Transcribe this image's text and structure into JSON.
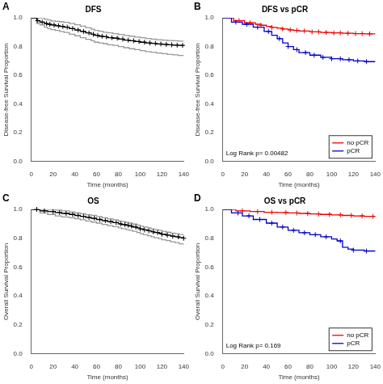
{
  "chart_data": [
    {
      "type": "line",
      "title": "DFS",
      "panel_label": "A",
      "xlabel": "Time (months)",
      "ylabel": "Disease-free Survival Proportion",
      "xlim": [
        0,
        140
      ],
      "ylim": [
        0.0,
        1.0
      ],
      "xticks": [
        0,
        20,
        40,
        60,
        80,
        100,
        120,
        140
      ],
      "yticks": [
        {
          "value": 0.0,
          "label": "0.0"
        },
        0.2,
        0.4,
        0.6,
        0.8,
        {
          "value": 1.0,
          "label": "1.0"
        }
      ],
      "grid": false,
      "series": [
        {
          "type": "step",
          "color": "#999999",
          "x": [
            0,
            5,
            8,
            12,
            15,
            18,
            22,
            26,
            30,
            35,
            40,
            45,
            50,
            55,
            58,
            62,
            66,
            70,
            75,
            80,
            85,
            90,
            95,
            100,
            105,
            110,
            115,
            120,
            125,
            130,
            135,
            140
          ],
          "values": [
            1.0,
            1.0,
            1.0,
            0.99,
            0.985,
            0.978,
            0.975,
            0.972,
            0.968,
            0.96,
            0.952,
            0.942,
            0.93,
            0.92,
            0.912,
            0.906,
            0.9,
            0.895,
            0.89,
            0.884,
            0.877,
            0.872,
            0.866,
            0.862,
            0.856,
            0.852,
            0.848,
            0.845,
            0.842,
            0.84,
            0.838,
            0.836
          ]
        },
        {
          "type": "step",
          "color": "#999999",
          "x": [
            0,
            5,
            8,
            12,
            15,
            18,
            22,
            26,
            30,
            35,
            40,
            45,
            50,
            55,
            58,
            62,
            66,
            70,
            75,
            80,
            85,
            90,
            95,
            100,
            105,
            110,
            115,
            120,
            125,
            130,
            135,
            140
          ],
          "values": [
            1.0,
            0.96,
            0.95,
            0.935,
            0.925,
            0.918,
            0.912,
            0.905,
            0.898,
            0.885,
            0.875,
            0.862,
            0.85,
            0.84,
            0.83,
            0.825,
            0.82,
            0.812,
            0.808,
            0.8,
            0.792,
            0.785,
            0.778,
            0.772,
            0.765,
            0.76,
            0.755,
            0.75,
            0.745,
            0.742,
            0.738,
            0.735
          ]
        },
        {
          "type": "step",
          "color": "#000000",
          "x": [
            0,
            5,
            8,
            12,
            15,
            18,
            22,
            26,
            30,
            35,
            40,
            45,
            50,
            55,
            58,
            62,
            66,
            70,
            75,
            80,
            85,
            90,
            95,
            100,
            105,
            110,
            115,
            120,
            125,
            130,
            135,
            140
          ],
          "values": [
            1.0,
            0.98,
            0.97,
            0.96,
            0.955,
            0.95,
            0.945,
            0.94,
            0.935,
            0.925,
            0.915,
            0.905,
            0.895,
            0.885,
            0.878,
            0.872,
            0.868,
            0.862,
            0.858,
            0.852,
            0.845,
            0.84,
            0.835,
            0.83,
            0.825,
            0.822,
            0.818,
            0.815,
            0.812,
            0.81,
            0.808,
            0.805
          ]
        },
        {
          "type": "scatter",
          "marker": "plus",
          "color": "#000000",
          "x": [
            6,
            10,
            14,
            17,
            21,
            25,
            29,
            33,
            38,
            43,
            48,
            53,
            57,
            61,
            65,
            69,
            74,
            79,
            84,
            89,
            94,
            99,
            104,
            109,
            114,
            119,
            124,
            129,
            134,
            139
          ],
          "values": [
            0.98,
            0.97,
            0.96,
            0.955,
            0.95,
            0.945,
            0.94,
            0.935,
            0.925,
            0.915,
            0.905,
            0.895,
            0.885,
            0.878,
            0.872,
            0.868,
            0.862,
            0.858,
            0.852,
            0.845,
            0.84,
            0.835,
            0.83,
            0.825,
            0.822,
            0.818,
            0.815,
            0.812,
            0.81,
            0.808
          ]
        }
      ]
    },
    {
      "type": "line",
      "title": "DFS vs pCR",
      "panel_label": "B",
      "xlabel": "Time (months)",
      "ylabel": "Disease-free Survival Proportion",
      "xlim": [
        0,
        140
      ],
      "ylim": [
        0.0,
        1.0
      ],
      "xticks": [
        0,
        20,
        40,
        60,
        80,
        100,
        120,
        140
      ],
      "yticks": [
        {
          "value": 0.0,
          "label": "0.0"
        },
        0.2,
        0.4,
        0.6,
        0.8,
        {
          "value": 1.0,
          "label": "1.0"
        }
      ],
      "grid": false,
      "legend": "lower right",
      "annotations": [
        "Log Rank p= 0.00482"
      ],
      "series": [
        {
          "name": "no pCR",
          "type": "step",
          "color": "#EE0000",
          "x": [
            0,
            10,
            20,
            30,
            35,
            40,
            45,
            50,
            55,
            60,
            65,
            70,
            80,
            90,
            100,
            110,
            120,
            130,
            140
          ],
          "values": [
            1.0,
            0.98,
            0.965,
            0.955,
            0.948,
            0.94,
            0.933,
            0.928,
            0.922,
            0.916,
            0.912,
            0.908,
            0.902,
            0.898,
            0.895,
            0.892,
            0.89,
            0.888,
            0.885
          ]
        },
        {
          "name": "pCR",
          "type": "step",
          "color": "#0000CC",
          "x": [
            0,
            8,
            18,
            28,
            38,
            45,
            50,
            55,
            60,
            65,
            70,
            80,
            90,
            100,
            110,
            120,
            130,
            140
          ],
          "values": [
            1.0,
            0.97,
            0.955,
            0.935,
            0.905,
            0.878,
            0.855,
            0.825,
            0.8,
            0.778,
            0.758,
            0.74,
            0.725,
            0.715,
            0.708,
            0.7,
            0.695,
            0.69
          ]
        },
        {
          "type": "scatter",
          "marker": "plus",
          "color": "#EE0000",
          "x": [
            15,
            25,
            35,
            45,
            55,
            62,
            68,
            75,
            82,
            88,
            95,
            102,
            108,
            115,
            122,
            128,
            135
          ],
          "values": [
            0.98,
            0.965,
            0.948,
            0.933,
            0.922,
            0.916,
            0.912,
            0.908,
            0.902,
            0.902,
            0.898,
            0.895,
            0.895,
            0.892,
            0.89,
            0.89,
            0.888
          ]
        },
        {
          "type": "scatter",
          "marker": "plus",
          "color": "#0000CC",
          "x": [
            12,
            22,
            32,
            42,
            52,
            60,
            68,
            76,
            84,
            92,
            100,
            108,
            116,
            124,
            132
          ],
          "values": [
            0.97,
            0.955,
            0.935,
            0.905,
            0.855,
            0.8,
            0.778,
            0.758,
            0.74,
            0.725,
            0.715,
            0.715,
            0.708,
            0.7,
            0.695
          ]
        }
      ]
    },
    {
      "type": "line",
      "title": "OS",
      "panel_label": "C",
      "xlabel": "Time (months)",
      "ylabel": "Overall Survival Proportion",
      "xlim": [
        0,
        140
      ],
      "ylim": [
        0.0,
        1.0
      ],
      "xticks": [
        0,
        20,
        40,
        60,
        80,
        100,
        120,
        140
      ],
      "yticks": [
        {
          "value": 0.0,
          "label": "0.0"
        },
        0.2,
        0.4,
        0.6,
        0.8,
        {
          "value": 1.0,
          "label": "1.0"
        }
      ],
      "grid": false,
      "series": [
        {
          "type": "step",
          "color": "#999999",
          "x": [
            0,
            8,
            15,
            22,
            28,
            35,
            40,
            45,
            50,
            55,
            60,
            65,
            70,
            75,
            80,
            83,
            87,
            90,
            93,
            97,
            100,
            103,
            107,
            110,
            113,
            117,
            120,
            124,
            128,
            132,
            136,
            140
          ],
          "values": [
            1.0,
            1.0,
            1.0,
            0.995,
            0.99,
            0.982,
            0.976,
            0.97,
            0.963,
            0.958,
            0.95,
            0.942,
            0.935,
            0.928,
            0.92,
            0.915,
            0.91,
            0.905,
            0.898,
            0.892,
            0.885,
            0.878,
            0.872,
            0.865,
            0.86,
            0.855,
            0.848,
            0.842,
            0.836,
            0.831,
            0.826,
            0.82
          ]
        },
        {
          "type": "step",
          "color": "#999999",
          "x": [
            0,
            8,
            15,
            22,
            28,
            35,
            40,
            45,
            50,
            55,
            60,
            65,
            70,
            75,
            80,
            83,
            87,
            90,
            93,
            97,
            100,
            103,
            107,
            110,
            113,
            117,
            120,
            124,
            128,
            132,
            136,
            140
          ],
          "values": [
            1.0,
            0.975,
            0.965,
            0.955,
            0.948,
            0.942,
            0.935,
            0.928,
            0.92,
            0.912,
            0.905,
            0.896,
            0.888,
            0.88,
            0.872,
            0.866,
            0.86,
            0.855,
            0.848,
            0.84,
            0.832,
            0.825,
            0.818,
            0.81,
            0.804,
            0.798,
            0.79,
            0.784,
            0.776,
            0.77,
            0.762,
            0.755
          ]
        },
        {
          "type": "step",
          "color": "#000000",
          "x": [
            0,
            8,
            15,
            22,
            28,
            35,
            40,
            45,
            50,
            55,
            60,
            65,
            70,
            75,
            80,
            83,
            87,
            90,
            93,
            97,
            100,
            103,
            107,
            110,
            113,
            117,
            120,
            124,
            128,
            132,
            136,
            140
          ],
          "values": [
            1.0,
            0.99,
            0.985,
            0.978,
            0.972,
            0.965,
            0.958,
            0.952,
            0.945,
            0.938,
            0.93,
            0.922,
            0.915,
            0.908,
            0.9,
            0.895,
            0.89,
            0.885,
            0.878,
            0.872,
            0.865,
            0.858,
            0.852,
            0.845,
            0.84,
            0.835,
            0.828,
            0.822,
            0.815,
            0.81,
            0.805,
            0.8
          ]
        },
        {
          "type": "scatter",
          "marker": "plus",
          "color": "#000000",
          "x": [
            5,
            12,
            20,
            26,
            32,
            38,
            43,
            48,
            53,
            58,
            63,
            68,
            73,
            78,
            82,
            86,
            89,
            92,
            96,
            100,
            104,
            108,
            112,
            116,
            120,
            125,
            130,
            135,
            140
          ],
          "values": [
            1.0,
            0.99,
            0.985,
            0.978,
            0.972,
            0.965,
            0.958,
            0.952,
            0.945,
            0.938,
            0.93,
            0.922,
            0.915,
            0.908,
            0.9,
            0.895,
            0.89,
            0.885,
            0.878,
            0.865,
            0.858,
            0.852,
            0.845,
            0.84,
            0.828,
            0.822,
            0.815,
            0.81,
            0.8
          ]
        }
      ]
    },
    {
      "type": "line",
      "title": "OS vs pCR",
      "panel_label": "D",
      "xlabel": "Time (months)",
      "ylabel": "Overall Survival Proportion",
      "xlim": [
        0,
        140
      ],
      "ylim": [
        0.0,
        1.0
      ],
      "xticks": [
        0,
        20,
        40,
        60,
        80,
        100,
        120,
        140
      ],
      "yticks": [
        {
          "value": 0.0,
          "label": "0.0"
        },
        0.2,
        0.4,
        0.6,
        0.8,
        {
          "value": 1.0,
          "label": "1.0"
        }
      ],
      "grid": false,
      "legend": "lower right",
      "annotations": [
        "Log Rank p= 0.169"
      ],
      "series": [
        {
          "name": "no pCR",
          "type": "step",
          "color": "#EE0000",
          "x": [
            0,
            12,
            25,
            38,
            50,
            60,
            70,
            80,
            90,
            100,
            110,
            120,
            130,
            140
          ],
          "values": [
            1.0,
            0.99,
            0.985,
            0.98,
            0.978,
            0.975,
            0.972,
            0.968,
            0.965,
            0.962,
            0.958,
            0.955,
            0.952,
            0.95
          ]
        },
        {
          "name": "pCR",
          "type": "step",
          "color": "#0000CC",
          "x": [
            0,
            8,
            18,
            28,
            40,
            50,
            60,
            70,
            80,
            90,
            100,
            105,
            110,
            115,
            120,
            130,
            140
          ],
          "values": [
            1.0,
            0.975,
            0.955,
            0.93,
            0.905,
            0.878,
            0.855,
            0.838,
            0.825,
            0.81,
            0.795,
            0.782,
            0.738,
            0.725,
            0.718,
            0.712,
            0.708
          ]
        },
        {
          "type": "scatter",
          "marker": "plus",
          "color": "#EE0000",
          "x": [
            18,
            32,
            45,
            58,
            68,
            78,
            88,
            98,
            108,
            118,
            128,
            138
          ],
          "values": [
            0.99,
            0.985,
            0.98,
            0.978,
            0.975,
            0.972,
            0.968,
            0.965,
            0.962,
            0.958,
            0.955,
            0.952
          ]
        },
        {
          "type": "scatter",
          "marker": "plus",
          "color": "#0000CC",
          "x": [
            14,
            24,
            34,
            45,
            55,
            65,
            75,
            85,
            95,
            108,
            120,
            132
          ],
          "values": [
            0.975,
            0.955,
            0.93,
            0.905,
            0.878,
            0.855,
            0.838,
            0.825,
            0.81,
            0.782,
            0.718,
            0.712
          ]
        }
      ]
    }
  ]
}
